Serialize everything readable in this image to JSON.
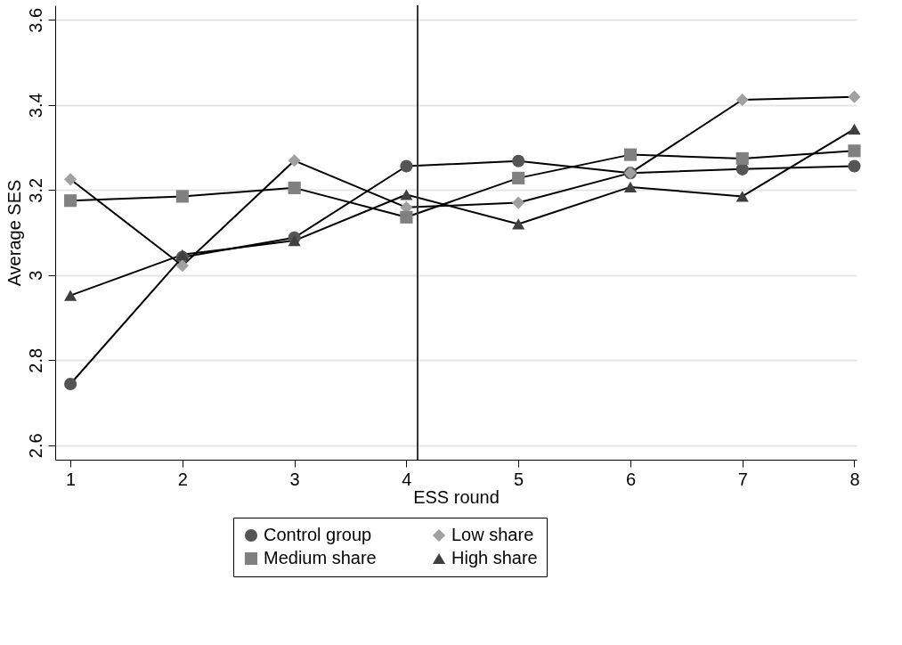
{
  "chart_data": {
    "type": "line",
    "xlabel": "ESS round",
    "ylabel": "Average SES",
    "x": [
      1,
      2,
      3,
      4,
      5,
      6,
      7,
      8
    ],
    "xlim": [
      0.864,
      8.02
    ],
    "xticks": [
      1,
      2,
      3,
      4,
      5,
      6,
      7,
      8
    ],
    "ylim": [
      2.566,
      3.634
    ],
    "yticks": [
      2.6,
      2.8,
      3,
      3.2,
      3.4,
      3.6
    ],
    "grid": "y",
    "legend": "bottom",
    "line_style": "solid",
    "ref_lines": [
      {
        "axis": "x",
        "value": 4.1,
        "color": "#333333"
      }
    ],
    "series": [
      {
        "name": "Control group",
        "color": "#555555",
        "marker": "circle",
        "values": [
          2.744,
          3.042,
          3.088,
          3.256,
          3.268,
          3.24,
          3.249,
          3.256
        ]
      },
      {
        "name": "Low share",
        "color": "#a0a0a0",
        "marker": "diamond",
        "values": [
          3.225,
          3.022,
          3.269,
          3.159,
          3.17,
          3.24,
          3.412,
          3.419
        ]
      },
      {
        "name": "Medium share",
        "color": "#808080",
        "marker": "square",
        "values": [
          3.175,
          3.185,
          3.205,
          3.136,
          3.228,
          3.283,
          3.274,
          3.292
        ]
      },
      {
        "name": "High share",
        "color": "#404040",
        "marker": "triangle",
        "values": [
          2.952,
          3.048,
          3.081,
          3.189,
          3.12,
          3.207,
          3.185,
          3.343
        ]
      }
    ]
  }
}
